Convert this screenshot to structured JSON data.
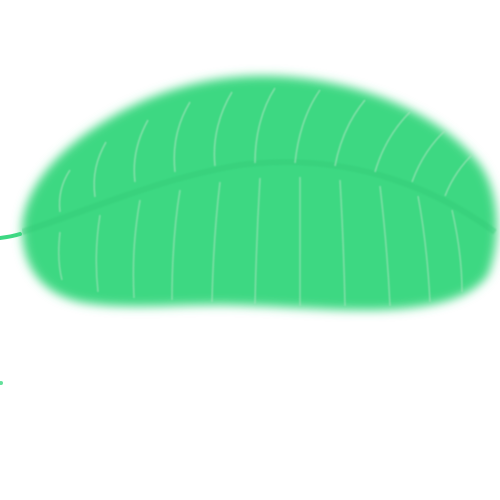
{
  "image": {
    "subject": "leaf",
    "colors": {
      "background": "#ffffff",
      "leaf": "#3dd882",
      "leaf_edge": "#52de90",
      "midrib": "#2fc873",
      "vein": "#9fe0b7"
    }
  }
}
